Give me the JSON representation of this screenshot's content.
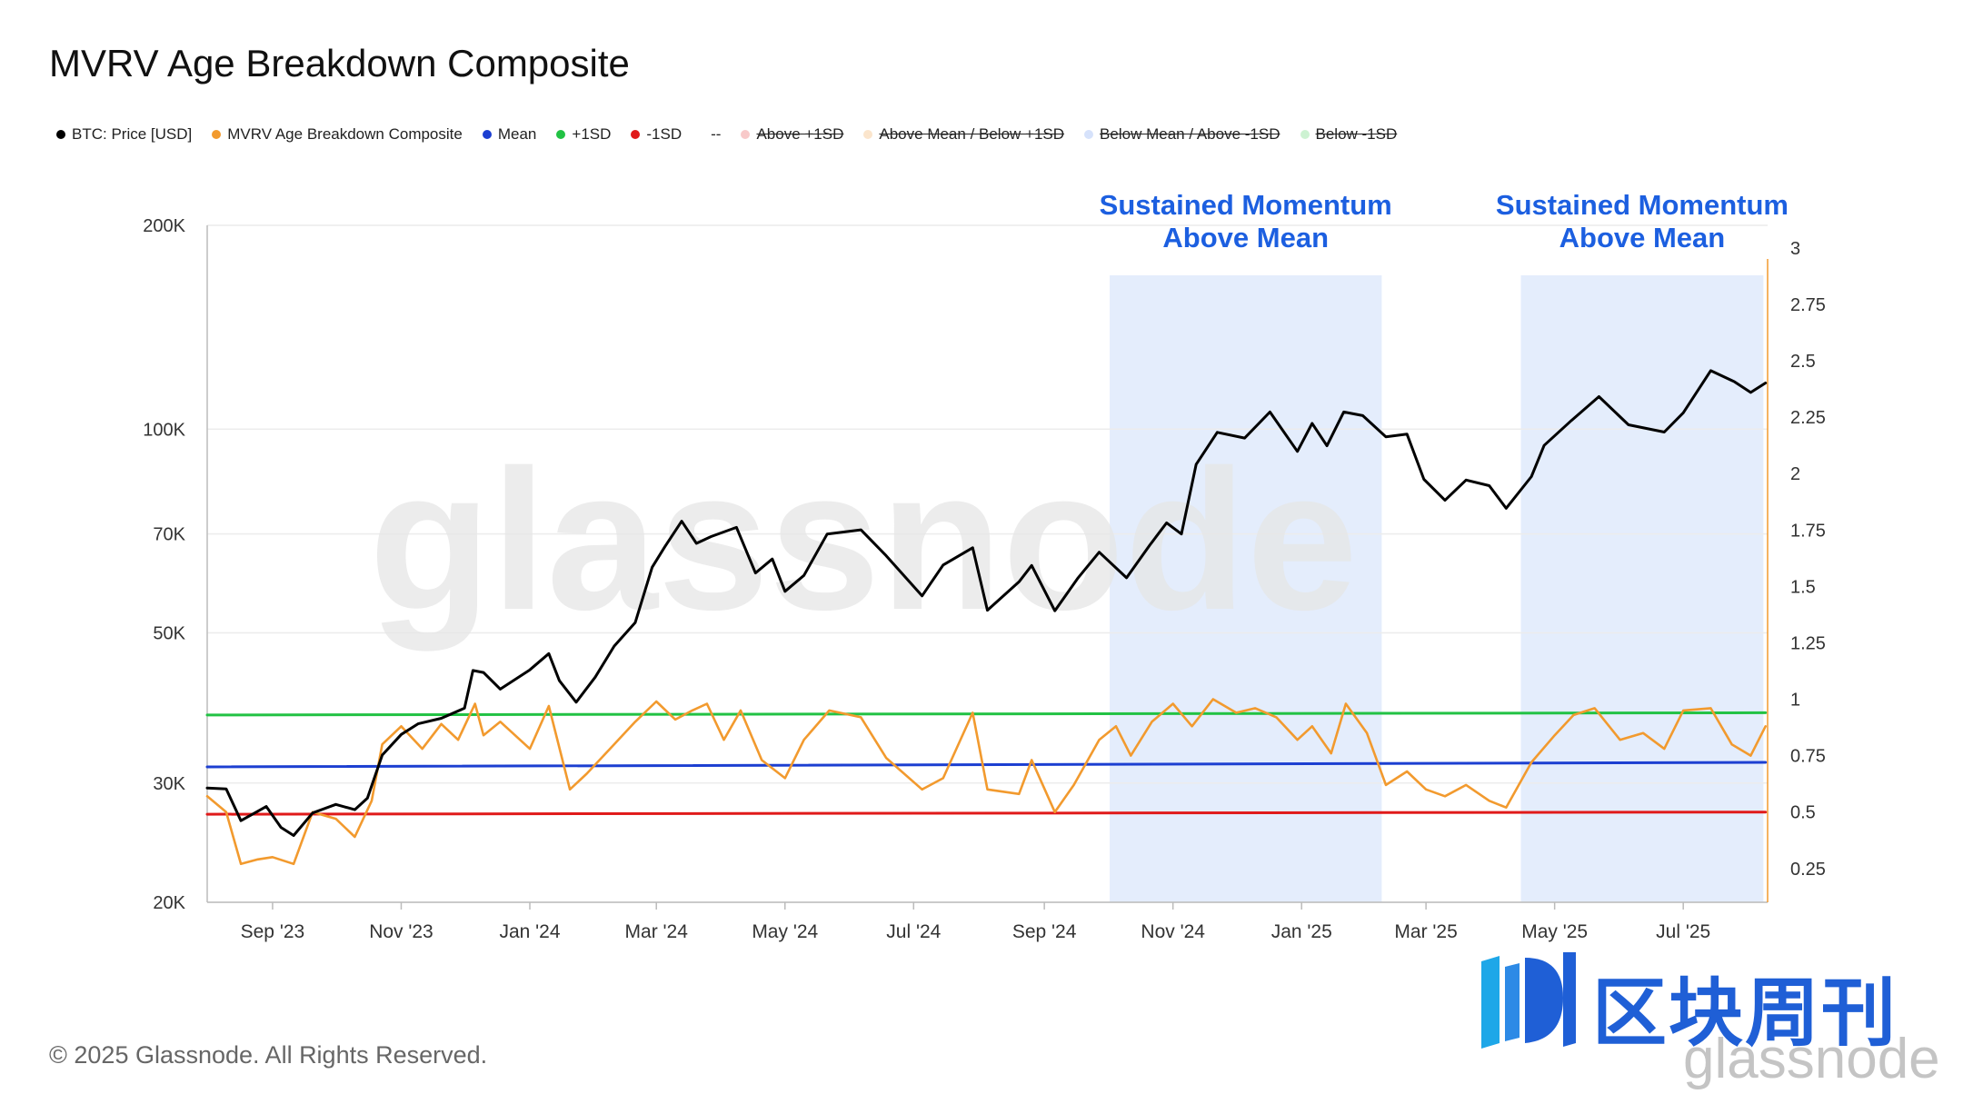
{
  "title": "MVRV Age Breakdown Composite",
  "legend": [
    {
      "label": "BTC: Price [USD]",
      "color": "#000000",
      "struck": false
    },
    {
      "label": "MVRV Age Breakdown Composite",
      "color": "#f29a2e",
      "struck": false
    },
    {
      "label": "Mean",
      "color": "#1c3fd1",
      "struck": false
    },
    {
      "label": "+1SD",
      "color": "#22c244",
      "struck": false
    },
    {
      "label": "-1SD",
      "color": "#e01a1a",
      "struck": false
    },
    {
      "label": "--",
      "color": "",
      "struck": false
    },
    {
      "label": "Above +1SD",
      "color": "#f8c9c9",
      "struck": true
    },
    {
      "label": "Above Mean / Below +1SD",
      "color": "#fbe5cc",
      "struck": true
    },
    {
      "label": "Below Mean / Above -1SD",
      "color": "#d6e2fb",
      "struck": true
    },
    {
      "label": "Below -1SD",
      "color": "#cdf2d2",
      "struck": true
    }
  ],
  "copyright": "© 2025 Glassnode. All Rights Reserved.",
  "watermark": "glassnode",
  "logo": {
    "cn": "区块周刊",
    "sub": "glassnode",
    "color": "#1f5fd6"
  },
  "chart_data": {
    "type": "line",
    "x_range": [
      "2023-08-01",
      "2025-08-10"
    ],
    "x_ticks": [
      "Sep '23",
      "Nov '23",
      "Jan '24",
      "Mar '24",
      "May '24",
      "Jul '24",
      "Sep '24",
      "Nov '24",
      "Jan '25",
      "Mar '25",
      "May '25",
      "Jul '25"
    ],
    "y_left": {
      "scale": "log",
      "range": [
        20000,
        200000
      ],
      "ticks": [
        "20K",
        "30K",
        "50K",
        "70K",
        "100K",
        "200K"
      ],
      "tick_values": [
        20000,
        30000,
        50000,
        70000,
        100000,
        200000
      ]
    },
    "y_right": {
      "scale": "linear",
      "range": [
        0.1,
        3.1
      ],
      "ticks": [
        "0.25",
        "0.5",
        "0.75",
        "1",
        "1.25",
        "1.5",
        "1.75",
        "2",
        "2.25",
        "2.5",
        "2.75",
        "3"
      ],
      "tick_values": [
        0.25,
        0.5,
        0.75,
        1,
        1.25,
        1.5,
        1.75,
        2,
        2.25,
        2.5,
        2.75,
        3
      ]
    },
    "grid": "horizontal",
    "annotations": [
      {
        "lines": [
          "Sustained Momentum",
          "Above Mean"
        ],
        "start": "2024-10-02",
        "end": "2025-02-08"
      },
      {
        "lines": [
          "Sustained Momentum",
          "Above Mean"
        ],
        "start": "2025-04-15",
        "end": "2025-08-08"
      }
    ],
    "series": [
      {
        "name": "BTC: Price [USD]",
        "axis": "left",
        "color": "#000000",
        "points": [
          [
            "2023-08-01",
            29500
          ],
          [
            "2023-08-10",
            29400
          ],
          [
            "2023-08-17",
            26400
          ],
          [
            "2023-08-29",
            27700
          ],
          [
            "2023-09-05",
            25800
          ],
          [
            "2023-09-11",
            25100
          ],
          [
            "2023-09-20",
            27100
          ],
          [
            "2023-10-01",
            27900
          ],
          [
            "2023-10-10",
            27400
          ],
          [
            "2023-10-16",
            28500
          ],
          [
            "2023-10-23",
            33000
          ],
          [
            "2023-11-01",
            35400
          ],
          [
            "2023-11-09",
            36700
          ],
          [
            "2023-11-20",
            37400
          ],
          [
            "2023-12-01",
            38700
          ],
          [
            "2023-12-05",
            44000
          ],
          [
            "2023-12-10",
            43700
          ],
          [
            "2023-12-18",
            41300
          ],
          [
            "2024-01-01",
            44100
          ],
          [
            "2024-01-10",
            46600
          ],
          [
            "2024-01-15",
            42500
          ],
          [
            "2024-01-23",
            39500
          ],
          [
            "2024-02-01",
            43000
          ],
          [
            "2024-02-10",
            47800
          ],
          [
            "2024-02-20",
            51800
          ],
          [
            "2024-02-28",
            62500
          ],
          [
            "2024-03-05",
            67000
          ],
          [
            "2024-03-13",
            73100
          ],
          [
            "2024-03-20",
            67800
          ],
          [
            "2024-03-27",
            69400
          ],
          [
            "2024-04-08",
            71600
          ],
          [
            "2024-04-17",
            61300
          ],
          [
            "2024-04-25",
            64300
          ],
          [
            "2024-05-01",
            57600
          ],
          [
            "2024-05-10",
            60800
          ],
          [
            "2024-05-21",
            70000
          ],
          [
            "2024-06-06",
            71000
          ],
          [
            "2024-06-18",
            65000
          ],
          [
            "2024-07-05",
            56700
          ],
          [
            "2024-07-15",
            63000
          ],
          [
            "2024-07-29",
            66800
          ],
          [
            "2024-08-05",
            54000
          ],
          [
            "2024-08-20",
            59500
          ],
          [
            "2024-08-26",
            62900
          ],
          [
            "2024-09-06",
            53900
          ],
          [
            "2024-09-17",
            60300
          ],
          [
            "2024-09-27",
            65800
          ],
          [
            "2024-10-10",
            60300
          ],
          [
            "2024-10-21",
            67400
          ],
          [
            "2024-10-29",
            72700
          ],
          [
            "2024-11-05",
            70000
          ],
          [
            "2024-11-12",
            88700
          ],
          [
            "2024-11-22",
            98900
          ],
          [
            "2024-12-05",
            97000
          ],
          [
            "2024-12-17",
            106000
          ],
          [
            "2024-12-30",
            92700
          ],
          [
            "2025-01-06",
            102000
          ],
          [
            "2025-01-13",
            94500
          ],
          [
            "2025-01-21",
            106000
          ],
          [
            "2025-01-30",
            104700
          ],
          [
            "2025-02-10",
            97400
          ],
          [
            "2025-02-20",
            98300
          ],
          [
            "2025-02-28",
            84300
          ],
          [
            "2025-03-10",
            78500
          ],
          [
            "2025-03-20",
            84100
          ],
          [
            "2025-03-31",
            82500
          ],
          [
            "2025-04-08",
            76400
          ],
          [
            "2025-04-20",
            85100
          ],
          [
            "2025-04-26",
            94600
          ],
          [
            "2025-05-09",
            103000
          ],
          [
            "2025-05-22",
            111700
          ],
          [
            "2025-06-05",
            101500
          ],
          [
            "2025-06-22",
            99000
          ],
          [
            "2025-07-01",
            105700
          ],
          [
            "2025-07-14",
            122000
          ],
          [
            "2025-07-25",
            117600
          ],
          [
            "2025-08-02",
            113300
          ],
          [
            "2025-08-09",
            117000
          ]
        ]
      },
      {
        "name": "MVRV Age Breakdown Composite",
        "axis": "right",
        "color": "#f29a2e",
        "points": [
          [
            "2023-08-01",
            0.57
          ],
          [
            "2023-08-10",
            0.5
          ],
          [
            "2023-08-17",
            0.27
          ],
          [
            "2023-08-25",
            0.29
          ],
          [
            "2023-09-01",
            0.3
          ],
          [
            "2023-09-11",
            0.27
          ],
          [
            "2023-09-20",
            0.5
          ],
          [
            "2023-10-01",
            0.47
          ],
          [
            "2023-10-10",
            0.39
          ],
          [
            "2023-10-18",
            0.55
          ],
          [
            "2023-10-23",
            0.8
          ],
          [
            "2023-11-01",
            0.88
          ],
          [
            "2023-11-11",
            0.78
          ],
          [
            "2023-11-20",
            0.89
          ],
          [
            "2023-11-28",
            0.82
          ],
          [
            "2023-12-06",
            0.98
          ],
          [
            "2023-12-10",
            0.84
          ],
          [
            "2023-12-18",
            0.9
          ],
          [
            "2024-01-01",
            0.78
          ],
          [
            "2024-01-10",
            0.97
          ],
          [
            "2024-01-20",
            0.6
          ],
          [
            "2024-01-28",
            0.67
          ],
          [
            "2024-02-08",
            0.78
          ],
          [
            "2024-02-20",
            0.9
          ],
          [
            "2024-03-01",
            0.99
          ],
          [
            "2024-03-10",
            0.91
          ],
          [
            "2024-03-18",
            0.95
          ],
          [
            "2024-03-25",
            0.98
          ],
          [
            "2024-04-02",
            0.82
          ],
          [
            "2024-04-10",
            0.95
          ],
          [
            "2024-04-20",
            0.73
          ],
          [
            "2024-05-01",
            0.65
          ],
          [
            "2024-05-10",
            0.82
          ],
          [
            "2024-05-22",
            0.95
          ],
          [
            "2024-06-06",
            0.92
          ],
          [
            "2024-06-18",
            0.74
          ],
          [
            "2024-07-05",
            0.6
          ],
          [
            "2024-07-15",
            0.65
          ],
          [
            "2024-07-29",
            0.94
          ],
          [
            "2024-08-05",
            0.6
          ],
          [
            "2024-08-20",
            0.58
          ],
          [
            "2024-08-26",
            0.73
          ],
          [
            "2024-09-06",
            0.5
          ],
          [
            "2024-09-15",
            0.62
          ],
          [
            "2024-09-27",
            0.82
          ],
          [
            "2024-10-05",
            0.88
          ],
          [
            "2024-10-12",
            0.75
          ],
          [
            "2024-10-22",
            0.9
          ],
          [
            "2024-11-01",
            0.98
          ],
          [
            "2024-11-10",
            0.88
          ],
          [
            "2024-11-20",
            1.0
          ],
          [
            "2024-12-01",
            0.94
          ],
          [
            "2024-12-10",
            0.96
          ],
          [
            "2024-12-20",
            0.92
          ],
          [
            "2024-12-30",
            0.82
          ],
          [
            "2025-01-06",
            0.88
          ],
          [
            "2025-01-15",
            0.76
          ],
          [
            "2025-01-22",
            0.98
          ],
          [
            "2025-02-01",
            0.85
          ],
          [
            "2025-02-10",
            0.62
          ],
          [
            "2025-02-20",
            0.68
          ],
          [
            "2025-03-01",
            0.6
          ],
          [
            "2025-03-10",
            0.57
          ],
          [
            "2025-03-20",
            0.62
          ],
          [
            "2025-03-31",
            0.55
          ],
          [
            "2025-04-08",
            0.52
          ],
          [
            "2025-04-20",
            0.72
          ],
          [
            "2025-05-01",
            0.84
          ],
          [
            "2025-05-10",
            0.93
          ],
          [
            "2025-05-20",
            0.96
          ],
          [
            "2025-06-01",
            0.82
          ],
          [
            "2025-06-12",
            0.85
          ],
          [
            "2025-06-22",
            0.78
          ],
          [
            "2025-07-01",
            0.95
          ],
          [
            "2025-07-14",
            0.96
          ],
          [
            "2025-07-24",
            0.8
          ],
          [
            "2025-08-02",
            0.75
          ],
          [
            "2025-08-09",
            0.88
          ]
        ]
      },
      {
        "name": "Mean",
        "axis": "right",
        "color": "#1c3fd1",
        "points": [
          [
            "2023-08-01",
            0.7
          ],
          [
            "2025-08-09",
            0.72
          ]
        ]
      },
      {
        "name": "+1SD",
        "axis": "right",
        "color": "#22c244",
        "points": [
          [
            "2023-08-01",
            0.93
          ],
          [
            "2025-08-09",
            0.94
          ]
        ]
      },
      {
        "name": "-1SD",
        "axis": "right",
        "color": "#e01a1a",
        "points": [
          [
            "2023-08-01",
            0.49
          ],
          [
            "2025-08-09",
            0.5
          ]
        ]
      }
    ]
  }
}
